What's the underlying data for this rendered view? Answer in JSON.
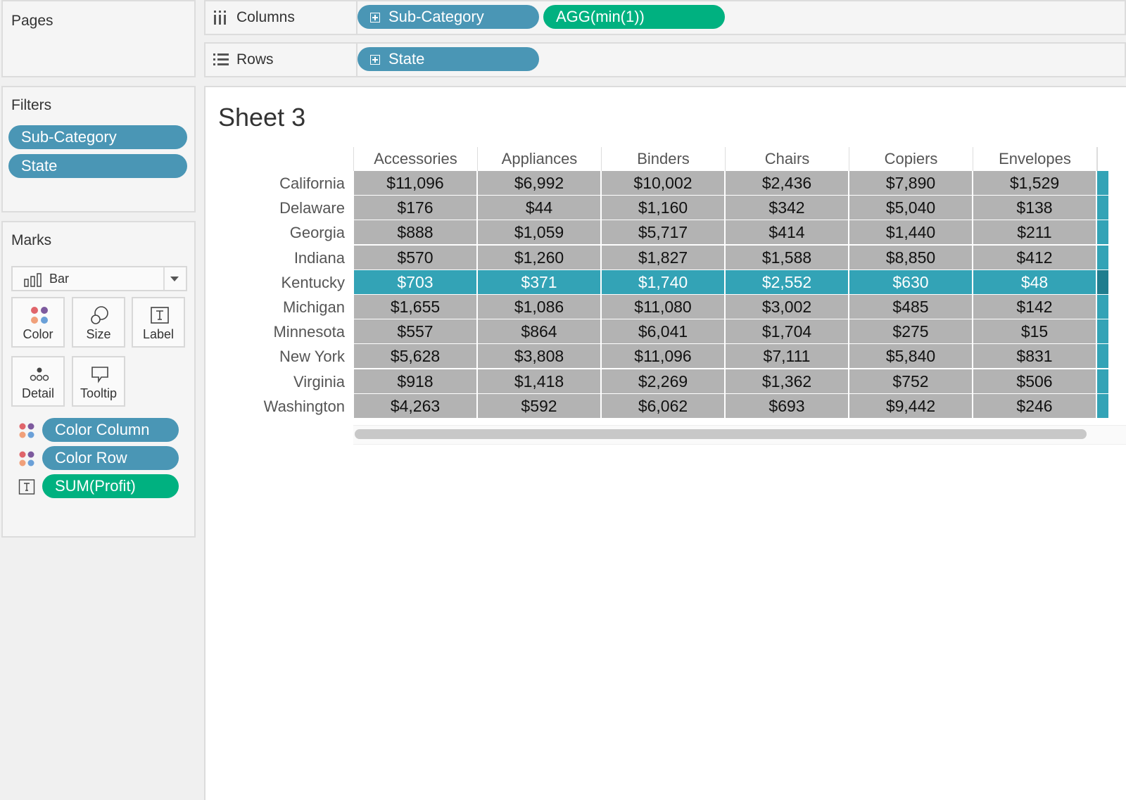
{
  "pages": {
    "title": "Pages"
  },
  "shelves": {
    "columns": {
      "label": "Columns",
      "pills": [
        {
          "text": "Sub-Category",
          "kind": "blue",
          "expand": true
        },
        {
          "text": "AGG(min(1))",
          "kind": "green",
          "expand": false
        }
      ]
    },
    "rows": {
      "label": "Rows",
      "pills": [
        {
          "text": "State",
          "kind": "blue",
          "expand": true
        }
      ]
    }
  },
  "filters": {
    "title": "Filters",
    "items": [
      "Sub-Category",
      "State"
    ]
  },
  "marks": {
    "title": "Marks",
    "mark_type": "Bar",
    "buttons": [
      "Color",
      "Size",
      "Label",
      "Detail",
      "Tooltip"
    ],
    "fields": [
      {
        "text": "Color Column",
        "kind": "blue",
        "icon": "color-dots-icon"
      },
      {
        "text": "Color Row",
        "kind": "blue",
        "icon": "color-dots-icon"
      },
      {
        "text": "SUM(Profit)",
        "kind": "green",
        "icon": "text-label-icon"
      }
    ]
  },
  "sheet": {
    "title": "Sheet 3",
    "columns": [
      "Accessories",
      "Appliances",
      "Binders",
      "Chairs",
      "Copiers",
      "Envelopes"
    ],
    "highlight_row": "Kentucky",
    "colors": {
      "cell": "#b3b3b3",
      "highlight": "#33a3b6",
      "pill_blue": "#4a96b5",
      "pill_green": "#00b180"
    },
    "rows": [
      {
        "state": "California",
        "values": [
          "$11,096",
          "$6,992",
          "$10,002",
          "$2,436",
          "$7,890",
          "$1,529"
        ]
      },
      {
        "state": "Delaware",
        "values": [
          "$176",
          "$44",
          "$1,160",
          "$342",
          "$5,040",
          "$138"
        ]
      },
      {
        "state": "Georgia",
        "values": [
          "$888",
          "$1,059",
          "$5,717",
          "$414",
          "$1,440",
          "$211"
        ]
      },
      {
        "state": "Indiana",
        "values": [
          "$570",
          "$1,260",
          "$1,827",
          "$1,588",
          "$8,850",
          "$412"
        ]
      },
      {
        "state": "Kentucky",
        "values": [
          "$703",
          "$371",
          "$1,740",
          "$2,552",
          "$630",
          "$48"
        ]
      },
      {
        "state": "Michigan",
        "values": [
          "$1,655",
          "$1,086",
          "$11,080",
          "$3,002",
          "$485",
          "$142"
        ]
      },
      {
        "state": "Minnesota",
        "values": [
          "$557",
          "$864",
          "$6,041",
          "$1,704",
          "$275",
          "$15"
        ]
      },
      {
        "state": "New York",
        "values": [
          "$5,628",
          "$3,808",
          "$11,096",
          "$7,111",
          "$5,840",
          "$831"
        ]
      },
      {
        "state": "Virginia",
        "values": [
          "$918",
          "$1,418",
          "$2,269",
          "$1,362",
          "$752",
          "$506"
        ]
      },
      {
        "state": "Washington",
        "values": [
          "$4,263",
          "$592",
          "$6,062",
          "$693",
          "$9,442",
          "$246"
        ]
      }
    ]
  }
}
